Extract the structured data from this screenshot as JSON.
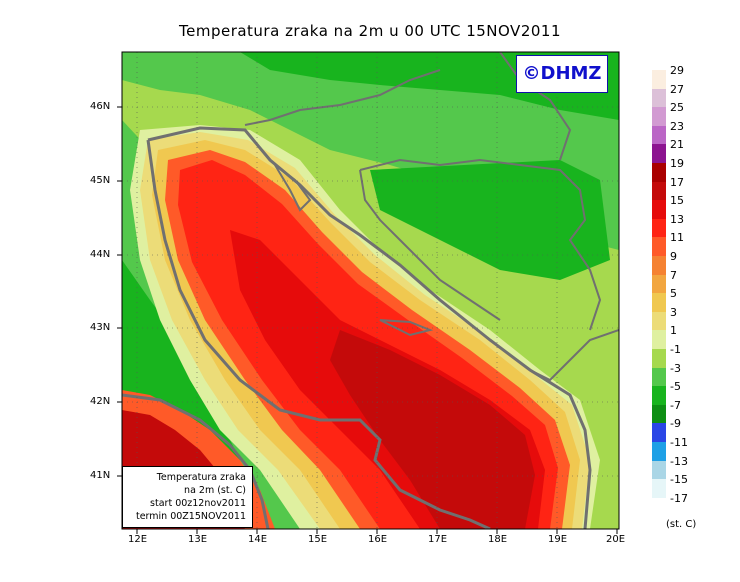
{
  "title": "Temperatura zraka na 2m u 00 UTC 15NOV2011",
  "logo_text": "©DHMZ",
  "latitudes": [
    "46N",
    "45N",
    "44N",
    "43N",
    "42N",
    "41N"
  ],
  "longitudes": [
    "12E",
    "13E",
    "14E",
    "15E",
    "16E",
    "17E",
    "18E",
    "19E",
    "20E"
  ],
  "info": {
    "line1": "Temperatura zraka",
    "line2": "na 2m (st. C)",
    "line3": "start 00z12nov2011",
    "line4": "termin 00Z15NOV2011"
  },
  "legend": {
    "units": "(st. C)",
    "entries": [
      {
        "label": "29",
        "color": "#fbeee0"
      },
      {
        "label": "27",
        "color": "#dcc0d8"
      },
      {
        "label": "25",
        "color": "#d29ad2"
      },
      {
        "label": "23",
        "color": "#bb66c6"
      },
      {
        "label": "21",
        "color": "#8c1490"
      },
      {
        "label": "19",
        "color": "#aa0000"
      },
      {
        "label": "17",
        "color": "#c40a0a"
      },
      {
        "label": "15",
        "color": "#e60b0b"
      },
      {
        "label": "13",
        "color": "#ff2414"
      },
      {
        "label": "11",
        "color": "#ff5a28"
      },
      {
        "label": "9",
        "color": "#f58232"
      },
      {
        "label": "7",
        "color": "#f2a640"
      },
      {
        "label": "5",
        "color": "#f0c850"
      },
      {
        "label": "3",
        "color": "#ecdc78"
      },
      {
        "label": "1",
        "color": "#dff0a0"
      },
      {
        "label": "-1",
        "color": "#a6d94e"
      },
      {
        "label": "-3",
        "color": "#54c84c"
      },
      {
        "label": "-5",
        "color": "#18b41e"
      },
      {
        "label": "-7",
        "color": "#0e8f14"
      },
      {
        "label": "-9",
        "color": "#2a46e6"
      },
      {
        "label": "-11",
        "color": "#1ea0e6"
      },
      {
        "label": "-13",
        "color": "#aad6e6"
      },
      {
        "label": "-15",
        "color": "#e6f6f8"
      },
      {
        "label": "-17",
        "color": "#ffffff"
      }
    ]
  }
}
